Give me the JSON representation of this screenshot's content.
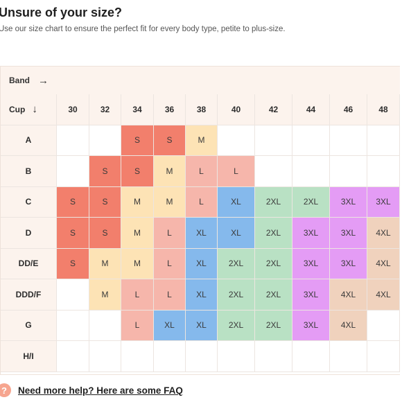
{
  "title": "Unsure of your size?",
  "subtitle": "Use our size chart to ensure the perfect fit for every body type, petite to plus-size.",
  "band_label": "Band",
  "cup_label": "Cup",
  "bands": [
    "30",
    "32",
    "34",
    "36",
    "38",
    "40",
    "42",
    "44",
    "46",
    "48"
  ],
  "rows": [
    {
      "cup": "A",
      "sizes": [
        "",
        "",
        "S",
        "S",
        "M",
        "",
        "",
        "",
        "",
        ""
      ]
    },
    {
      "cup": "B",
      "sizes": [
        "",
        "S",
        "S",
        "M",
        "L",
        "L",
        "",
        "",
        "",
        ""
      ]
    },
    {
      "cup": "C",
      "sizes": [
        "S",
        "S",
        "M",
        "M",
        "L",
        "XL",
        "2XL",
        "2XL",
        "3XL",
        "3XL"
      ]
    },
    {
      "cup": "D",
      "sizes": [
        "S",
        "S",
        "M",
        "L",
        "XL",
        "XL",
        "2XL",
        "3XL",
        "3XL",
        "4XL"
      ]
    },
    {
      "cup": "DD/E",
      "sizes": [
        "S",
        "M",
        "M",
        "L",
        "XL",
        "2XL",
        "2XL",
        "3XL",
        "3XL",
        "4XL"
      ]
    },
    {
      "cup": "DDD/F",
      "sizes": [
        "",
        "M",
        "L",
        "L",
        "XL",
        "2XL",
        "2XL",
        "3XL",
        "4XL",
        "4XL"
      ]
    },
    {
      "cup": "G",
      "sizes": [
        "",
        "",
        "L",
        "XL",
        "XL",
        "2XL",
        "2XL",
        "3XL",
        "4XL",
        ""
      ]
    },
    {
      "cup": "H/I",
      "sizes": [
        "",
        "",
        "",
        "",
        "",
        "",
        "",
        "",
        "",
        ""
      ]
    }
  ],
  "size_colors": {
    "S": "#f27f6c",
    "M": "#fde3b5",
    "L": "#f6b6ab",
    "XL": "#85b9ec",
    "2XL": "#b9e1c4",
    "3XL": "#e49cf5",
    "4XL": "#f0d2bd"
  },
  "help_icon_glyph": "?",
  "help_link": "Need more help? Here are some FAQ"
}
